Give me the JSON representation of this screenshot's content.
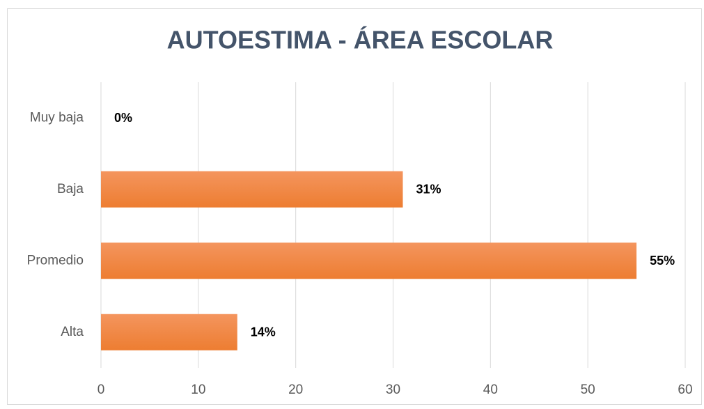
{
  "chart_data": {
    "type": "bar",
    "orientation": "horizontal",
    "title": "AUTOESTIMA - ÁREA ESCOLAR",
    "categories": [
      "Muy baja",
      "Baja",
      "Promedio",
      "Alta"
    ],
    "values": [
      0,
      31,
      55,
      14
    ],
    "value_labels": [
      "0%",
      "31%",
      "55%",
      "14%"
    ],
    "color": "#ed7d31",
    "xlim": [
      0,
      60
    ],
    "xticks": [
      0,
      10,
      20,
      30,
      40,
      50,
      60
    ],
    "grid": true
  }
}
